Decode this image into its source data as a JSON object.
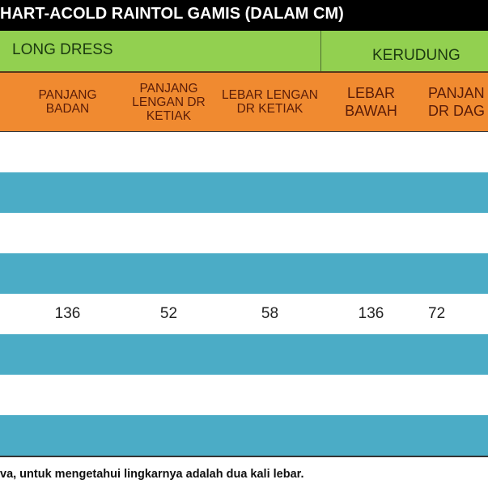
{
  "title": "HART-ACOLD RAINTOL GAMIS (DALAM CM)",
  "groups": {
    "long_dress": "LONG DRESS",
    "kerudung": "KERUDUNG"
  },
  "headers": [
    "",
    "PANJANG BADAN",
    "PANJANG LENGAN DR KETIAK",
    "LEBAR LENGAN DR KETIAK",
    "LEBAR BAWAH",
    "PANJAN DR DAG"
  ],
  "rows": [
    [
      "",
      "",
      "",
      "",
      "",
      ""
    ],
    [
      "",
      "",
      "",
      "",
      "",
      ""
    ],
    [
      "",
      "",
      "",
      "",
      "",
      ""
    ],
    [
      "",
      "",
      "",
      "",
      "",
      ""
    ],
    [
      "",
      "136",
      "52",
      "58",
      "136",
      "72"
    ],
    [
      "",
      "",
      "",
      "",
      "",
      ""
    ],
    [
      "",
      "",
      "",
      "",
      "",
      ""
    ],
    [
      "",
      "",
      "",
      "",
      "",
      ""
    ]
  ],
  "colors": {
    "title_bg": "#000000",
    "group_bg": "#92d050",
    "header_bg": "#f08a30",
    "stripe": "#4bacc6"
  },
  "footer": "va, untuk mengetahui lingkarnya adalah dua kali lebar."
}
